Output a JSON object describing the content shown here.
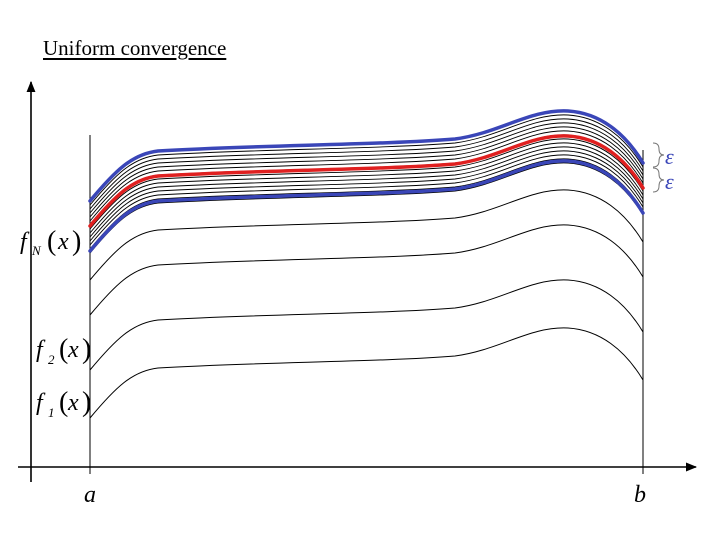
{
  "title": "Uniform convergence",
  "labels": {
    "a": "a",
    "b": "b",
    "epsilon_upper": "ε",
    "epsilon_lower": "ε",
    "f1": {
      "f": "f",
      "sub": "1",
      "open": "(",
      "x": "x",
      "close": ")"
    },
    "f2": {
      "f": "f",
      "sub": "2",
      "open": "(",
      "x": "x",
      "close": ")"
    },
    "fN": {
      "f": "f",
      "sub": "N",
      "open": "(",
      "x": "x",
      "close": ")"
    }
  },
  "colors": {
    "axis": "#000000",
    "curve": "#000000",
    "limit_function": "#e02020",
    "epsilon_band": "#3a46b8",
    "epsilon_label": "#3a46b8"
  }
}
